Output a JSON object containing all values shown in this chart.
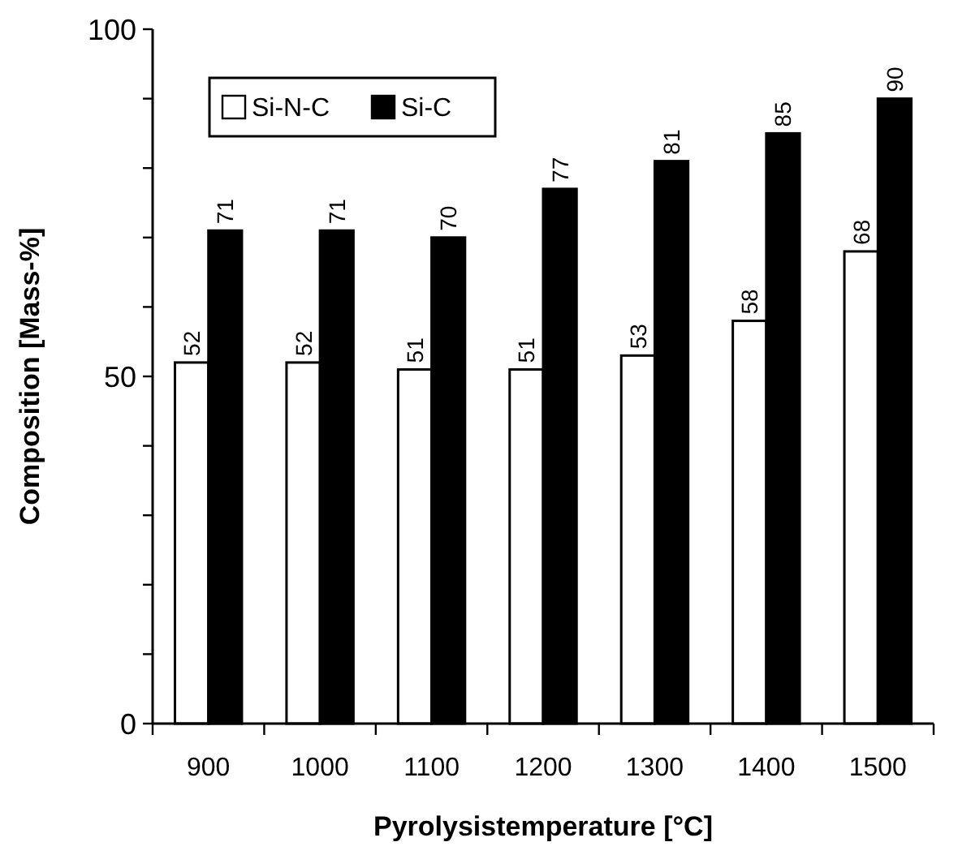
{
  "chart_data": {
    "type": "bar",
    "xlabel": "Pyrolysistemperature [°C]",
    "ylabel": "Composition [Mass-%]",
    "categories": [
      "900",
      "1000",
      "1100",
      "1200",
      "1300",
      "1400",
      "1500"
    ],
    "series": [
      {
        "name": "Si-N-C",
        "color": "#ffffff",
        "values": [
          52,
          52,
          51,
          51,
          53,
          58,
          68
        ]
      },
      {
        "name": "Si-C",
        "color": "#000000",
        "values": [
          71,
          71,
          70,
          77,
          81,
          85,
          90
        ]
      }
    ],
    "ylim": [
      0,
      100
    ],
    "yticks": [
      0,
      {
        "value": 10,
        "label": null
      },
      {
        "value": 20,
        "label": null
      },
      {
        "value": 30,
        "label": null
      },
      {
        "value": 40,
        "label": null
      },
      50,
      {
        "value": 60,
        "label": null
      },
      {
        "value": 70,
        "label": null
      },
      {
        "value": 80,
        "label": null
      },
      {
        "value": 90,
        "label": null
      },
      100
    ],
    "data_labels": true,
    "legend": "top left",
    "grid": false
  }
}
